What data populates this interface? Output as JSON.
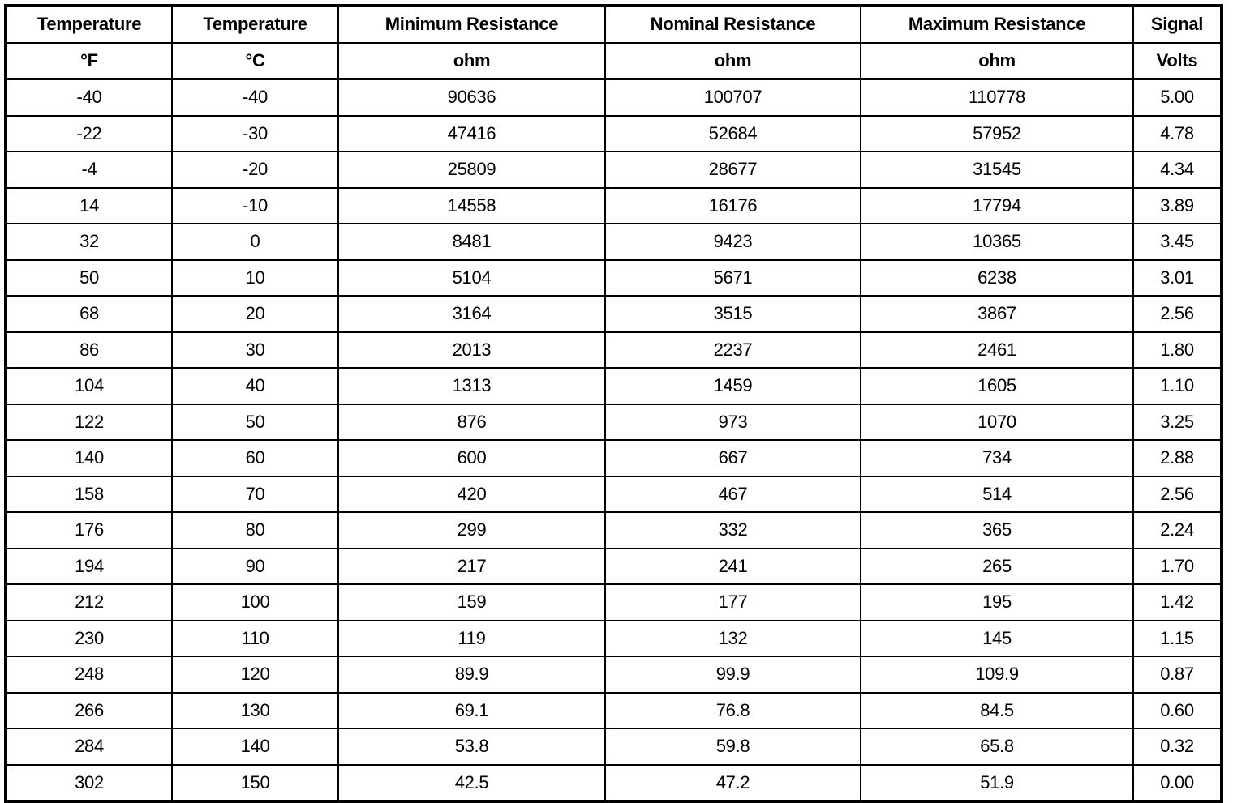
{
  "table": {
    "headers": [
      "Temperature",
      "Temperature",
      "Minimum Resistance",
      "Nominal Resistance",
      "Maximum Resistance",
      "Signal"
    ],
    "units": [
      "°F",
      "°C",
      "ohm",
      "ohm",
      "ohm",
      "Volts"
    ],
    "rows": [
      [
        "-40",
        "-40",
        "90636",
        "100707",
        "110778",
        "5.00"
      ],
      [
        "-22",
        "-30",
        "47416",
        "52684",
        "57952",
        "4.78"
      ],
      [
        "-4",
        "-20",
        "25809",
        "28677",
        "31545",
        "4.34"
      ],
      [
        "14",
        "-10",
        "14558",
        "16176",
        "17794",
        "3.89"
      ],
      [
        "32",
        "0",
        "8481",
        "9423",
        "10365",
        "3.45"
      ],
      [
        "50",
        "10",
        "5104",
        "5671",
        "6238",
        "3.01"
      ],
      [
        "68",
        "20",
        "3164",
        "3515",
        "3867",
        "2.56"
      ],
      [
        "86",
        "30",
        "2013",
        "2237",
        "2461",
        "1.80"
      ],
      [
        "104",
        "40",
        "1313",
        "1459",
        "1605",
        "1.10"
      ],
      [
        "122",
        "50",
        "876",
        "973",
        "1070",
        "3.25"
      ],
      [
        "140",
        "60",
        "600",
        "667",
        "734",
        "2.88"
      ],
      [
        "158",
        "70",
        "420",
        "467",
        "514",
        "2.56"
      ],
      [
        "176",
        "80",
        "299",
        "332",
        "365",
        "2.24"
      ],
      [
        "194",
        "90",
        "217",
        "241",
        "265",
        "1.70"
      ],
      [
        "212",
        "100",
        "159",
        "177",
        "195",
        "1.42"
      ],
      [
        "230",
        "110",
        "119",
        "132",
        "145",
        "1.15"
      ],
      [
        "248",
        "120",
        "89.9",
        "99.9",
        "109.9",
        "0.87"
      ],
      [
        "266",
        "130",
        "69.1",
        "76.8",
        "84.5",
        "0.60"
      ],
      [
        "284",
        "140",
        "53.8",
        "59.8",
        "65.8",
        "0.32"
      ],
      [
        "302",
        "150",
        "42.5",
        "47.2",
        "51.9",
        "0.00"
      ]
    ]
  }
}
